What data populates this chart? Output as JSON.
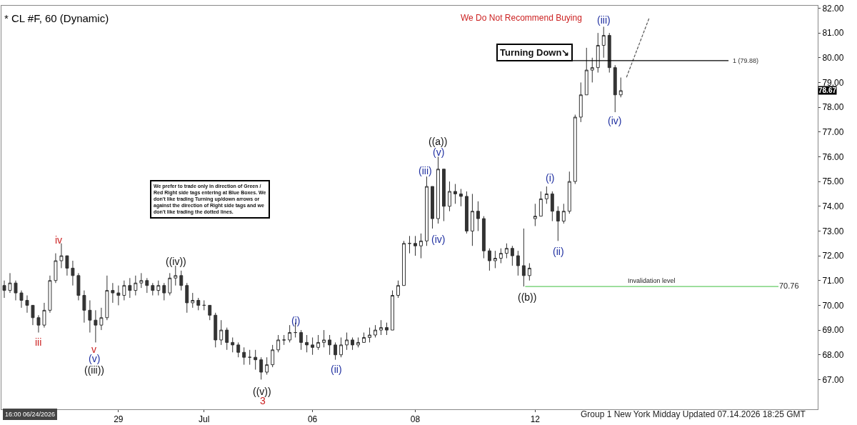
{
  "chart_data": {
    "type": "candlestick",
    "title": "* CL #F, 60 (Dynamic)",
    "color": "#333333",
    "categories": [
      null,
      null,
      null,
      null,
      null,
      null,
      null,
      null,
      null,
      null,
      null,
      null,
      null,
      null,
      null,
      null,
      null,
      null,
      null,
      null,
      "29",
      null,
      null,
      null,
      null,
      null,
      null,
      null,
      null,
      null,
      null,
      null,
      null,
      null,
      null,
      "Jul",
      null,
      null,
      null,
      null,
      null,
      null,
      null,
      null,
      null,
      null,
      null,
      null,
      null,
      null,
      null,
      null,
      null,
      null,
      "06",
      null,
      null,
      null,
      null,
      null,
      null,
      null,
      null,
      null,
      null,
      null,
      null,
      null,
      null,
      null,
      null,
      null,
      "08",
      null,
      null,
      null,
      null,
      null,
      null,
      null,
      null,
      null,
      null,
      null,
      null,
      null,
      null,
      null,
      null,
      null,
      null,
      null,
      null,
      "12",
      null,
      null,
      null,
      null,
      null,
      null,
      null,
      null,
      null,
      null,
      null,
      null,
      null,
      null,
      null,
      null,
      null,
      null,
      null,
      null,
      null,
      null,
      null,
      null,
      null,
      null,
      null,
      null,
      null,
      null,
      null,
      null,
      null,
      null,
      null,
      null,
      null,
      null,
      null,
      null,
      null,
      null,
      null,
      null,
      null,
      null,
      null,
      null,
      null
    ],
    "ohlc": [
      [
        70.8,
        71.0,
        70.3,
        70.6
      ],
      [
        70.6,
        71.3,
        70.5,
        70.9
      ],
      [
        70.9,
        71.0,
        70.2,
        70.5
      ],
      [
        70.5,
        70.6,
        69.9,
        70.2
      ],
      [
        70.2,
        70.4,
        69.7,
        70.0
      ],
      [
        70.0,
        70.0,
        69.2,
        69.5
      ],
      [
        69.5,
        69.6,
        68.9,
        69.2
      ],
      [
        69.2,
        70.1,
        69.1,
        69.8
      ],
      [
        69.8,
        71.2,
        69.7,
        71.0
      ],
      [
        71.0,
        72.1,
        70.9,
        71.8
      ],
      [
        71.8,
        72.5,
        71.5,
        72.0
      ],
      [
        72.0,
        72.0,
        71.2,
        71.5
      ],
      [
        71.5,
        71.8,
        70.8,
        71.2
      ],
      [
        71.2,
        71.3,
        70.2,
        70.4
      ],
      [
        70.4,
        70.6,
        69.3,
        69.8
      ],
      [
        69.8,
        70.2,
        68.9,
        69.4
      ],
      [
        69.4,
        69.8,
        68.5,
        69.2
      ],
      [
        69.2,
        69.9,
        69.0,
        69.5
      ],
      [
        69.5,
        71.2,
        69.4,
        70.6
      ],
      [
        70.6,
        70.9,
        70.1,
        70.5
      ],
      [
        70.5,
        70.8,
        70.0,
        70.4
      ],
      [
        70.4,
        71.0,
        70.2,
        70.8
      ],
      [
        70.8,
        71.1,
        70.3,
        70.6
      ],
      [
        70.6,
        71.2,
        70.4,
        70.9
      ],
      [
        70.9,
        71.3,
        70.7,
        71.0
      ],
      [
        71.0,
        71.1,
        70.5,
        70.8
      ],
      [
        70.8,
        70.9,
        70.4,
        70.6
      ],
      [
        70.6,
        71.0,
        70.4,
        70.8
      ],
      [
        70.8,
        70.9,
        70.2,
        70.5
      ],
      [
        70.5,
        71.3,
        70.4,
        71.1
      ],
      [
        71.1,
        71.6,
        70.8,
        71.2
      ],
      [
        71.2,
        71.4,
        70.6,
        70.8
      ],
      [
        70.8,
        70.9,
        69.7,
        70.1
      ],
      [
        70.1,
        70.5,
        69.9,
        70.2
      ],
      [
        70.2,
        70.3,
        69.8,
        70.0
      ],
      [
        70.0,
        70.2,
        69.8,
        70.0
      ],
      [
        70.0,
        70.0,
        69.4,
        69.6
      ],
      [
        69.6,
        69.7,
        68.3,
        68.6
      ],
      [
        68.6,
        69.4,
        68.4,
        69.0
      ],
      [
        69.0,
        69.1,
        68.2,
        68.5
      ],
      [
        68.5,
        68.7,
        68.1,
        68.4
      ],
      [
        68.4,
        68.5,
        67.9,
        68.1
      ],
      [
        68.1,
        68.3,
        67.6,
        67.9
      ],
      [
        67.9,
        68.2,
        67.6,
        67.9
      ],
      [
        67.9,
        68.2,
        67.4,
        67.8
      ],
      [
        67.8,
        67.9,
        67.0,
        67.3
      ],
      [
        67.3,
        67.9,
        67.2,
        67.6
      ],
      [
        67.6,
        68.4,
        67.5,
        68.2
      ],
      [
        68.2,
        68.8,
        68.1,
        68.6
      ],
      [
        68.6,
        68.8,
        68.4,
        68.6
      ],
      [
        68.6,
        69.2,
        68.5,
        68.9
      ],
      [
        68.9,
        69.3,
        68.7,
        68.9
      ],
      [
        68.9,
        69.0,
        68.2,
        68.5
      ],
      [
        68.5,
        68.8,
        68.1,
        68.4
      ],
      [
        68.4,
        68.7,
        68.0,
        68.3
      ],
      [
        68.3,
        68.8,
        68.2,
        68.5
      ],
      [
        68.5,
        69.0,
        68.3,
        68.6
      ],
      [
        68.6,
        68.8,
        68.0,
        68.4
      ],
      [
        68.4,
        68.5,
        67.8,
        68.0
      ],
      [
        68.0,
        68.7,
        67.9,
        68.4
      ],
      [
        68.4,
        68.9,
        68.2,
        68.6
      ],
      [
        68.6,
        68.7,
        68.2,
        68.4
      ],
      [
        68.4,
        68.7,
        68.3,
        68.5
      ],
      [
        68.5,
        68.9,
        68.5,
        68.7
      ],
      [
        68.7,
        69.1,
        68.5,
        68.8
      ],
      [
        68.8,
        69.2,
        68.7,
        69.0
      ],
      [
        69.0,
        69.4,
        68.8,
        69.1
      ],
      [
        69.1,
        69.3,
        68.8,
        69.0
      ],
      [
        69.0,
        70.6,
        69.0,
        70.4
      ],
      [
        70.4,
        71.0,
        70.3,
        70.8
      ],
      [
        70.8,
        72.6,
        70.8,
        72.5
      ],
      [
        72.5,
        72.8,
        72.1,
        72.5
      ],
      [
        72.5,
        72.8,
        72.0,
        72.4
      ],
      [
        72.4,
        72.9,
        71.9,
        72.6
      ],
      [
        72.6,
        75.2,
        72.4,
        74.8
      ],
      [
        74.8,
        74.8,
        73.1,
        73.5
      ],
      [
        73.5,
        76.0,
        73.3,
        75.5
      ],
      [
        75.5,
        75.5,
        73.4,
        74.0
      ],
      [
        74.0,
        75.0,
        73.8,
        74.6
      ],
      [
        74.6,
        74.9,
        74.1,
        74.5
      ],
      [
        74.5,
        74.7,
        74.0,
        74.4
      ],
      [
        74.4,
        74.6,
        72.9,
        73.0
      ],
      [
        73.0,
        74.5,
        72.4,
        73.8
      ],
      [
        73.8,
        74.2,
        73.0,
        73.5
      ],
      [
        73.5,
        73.6,
        71.9,
        72.2
      ],
      [
        72.2,
        72.3,
        71.4,
        71.8
      ],
      [
        71.8,
        72.2,
        71.5,
        71.9
      ],
      [
        71.9,
        72.3,
        71.7,
        72.1
      ],
      [
        72.1,
        72.5,
        71.9,
        72.3
      ],
      [
        72.3,
        72.4,
        71.6,
        72.0
      ],
      [
        72.0,
        72.2,
        71.2,
        71.6
      ],
      [
        71.6,
        73.1,
        70.76,
        71.2
      ],
      [
        71.2,
        71.7,
        71.0,
        71.5
      ],
      [
        73.5,
        74.1,
        73.2,
        73.6
      ],
      [
        73.6,
        74.6,
        73.6,
        74.3
      ],
      [
        74.3,
        74.8,
        74.1,
        74.5
      ],
      [
        74.5,
        74.6,
        73.4,
        73.8
      ],
      [
        73.8,
        74.0,
        72.6,
        73.4
      ],
      [
        73.4,
        74.1,
        73.3,
        73.8
      ],
      [
        73.8,
        75.4,
        73.7,
        75.0
      ],
      [
        75.0,
        77.7,
        74.9,
        77.6
      ],
      [
        77.6,
        79.0,
        77.4,
        78.5
      ],
      [
        78.5,
        80.4,
        78.5,
        79.5
      ],
      [
        79.5,
        80.0,
        79.0,
        79.6
      ],
      [
        79.6,
        81.0,
        79.4,
        80.5
      ],
      [
        80.5,
        81.25,
        80.0,
        80.9
      ],
      [
        80.9,
        81.0,
        79.4,
        79.6
      ],
      [
        79.6,
        79.7,
        77.8,
        78.5
      ],
      [
        78.5,
        79.2,
        78.4,
        78.67
      ],
      null,
      null,
      null,
      null,
      null,
      null,
      null,
      null,
      null,
      null,
      null,
      null,
      null,
      null,
      null,
      null,
      null,
      null,
      null,
      null,
      null,
      null,
      null,
      null,
      null,
      null,
      null,
      null,
      null,
      null,
      null,
      null,
      null,
      null
    ],
    "series": [
      {
        "type": "line",
        "values": [
          null,
          null,
          null,
          null,
          null,
          null,
          null,
          null,
          null,
          null,
          null,
          null,
          null,
          null,
          null,
          null,
          null,
          null,
          null,
          null,
          null,
          null,
          null,
          null,
          null,
          null,
          null,
          null,
          null,
          null,
          null,
          null,
          null,
          null,
          null,
          null,
          null,
          null,
          null,
          null,
          null,
          null,
          null,
          null,
          null,
          null,
          null,
          null,
          null,
          null,
          null,
          null,
          null,
          null,
          null,
          null,
          null,
          null,
          null,
          null,
          null,
          null,
          null,
          null,
          null,
          null,
          null,
          null,
          null,
          null,
          null,
          null,
          null,
          null,
          null,
          null,
          null,
          null,
          null,
          null,
          null,
          null,
          null,
          null,
          null,
          null,
          null,
          null,
          null,
          null,
          null,
          null,
          null,
          null,
          null,
          null,
          null,
          null,
          null,
          null,
          null,
          null,
          null,
          null,
          null,
          null,
          null,
          null,
          null,
          79.21,
          null,
          null,
          null,
          81.62,
          null,
          null,
          null,
          null,
          null,
          null,
          null,
          null,
          null,
          null,
          null,
          null,
          null,
          null,
          null,
          null,
          null,
          null,
          null,
          null,
          null,
          null,
          null,
          null,
          null,
          null,
          null,
          null,
          null
        ],
        "color": "#555555",
        "line_style": "dashed"
      }
    ],
    "ref_lines": [
      {
        "axis": "y",
        "value": 79.88,
        "label": "1 (79.88)",
        "color": "#000000"
      },
      {
        "axis": "y",
        "value": 70.76,
        "label": "Invalidation level",
        "color": "#66cc66"
      }
    ],
    "ylim": [
      65.8,
      82.1
    ],
    "yticks": [
      {
        "value": 67,
        "label": "67.00"
      },
      {
        "value": 68,
        "label": "68.00"
      },
      {
        "value": 69,
        "label": "69.00"
      },
      {
        "value": 70,
        "label": "70.00"
      },
      {
        "value": 71,
        "label": "71.00"
      },
      {
        "value": 72,
        "label": "72.00"
      },
      {
        "value": 73,
        "label": "73.00"
      },
      {
        "value": 74,
        "label": "74.00"
      },
      {
        "value": 75,
        "label": "75.00"
      },
      {
        "value": 76,
        "label": "76.00"
      },
      {
        "value": 77,
        "label": "77.00"
      },
      {
        "value": 78,
        "label": "78.00"
      },
      {
        "value": 79,
        "label": "79.00"
      },
      {
        "value": 80,
        "label": "80.00"
      },
      {
        "value": 81,
        "label": "81.00"
      },
      {
        "value": 82,
        "label": "82.00"
      }
    ],
    "annotations": [
      "Turning Down↘",
      "We Do Not Recommend Buying",
      "We prefer to trade only in direction of Green / Red Right side tags entering at Blue Boxes. We don't like trading Turning up/down arrows or against the direction of Right side tags and we don't like trading the dotted lines.",
      "Group 1 New York Midday Updated 07.14.2026 18:25 GMT",
      "16:00 06/24/2026",
      "70.76",
      "78.67",
      "iii",
      "iv",
      "v",
      "(v)",
      "((iii))",
      "((iv))",
      "((v))",
      "3",
      "(i)",
      "(ii)",
      "((a))",
      "(v)",
      "(iii)",
      "(iv)",
      "((b))",
      "(i)",
      "(ii)",
      "(iii)",
      "(iv)"
    ]
  }
}
